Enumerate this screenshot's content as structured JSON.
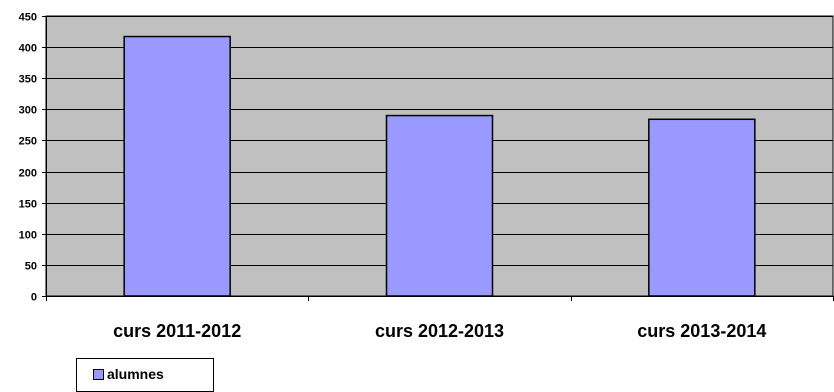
{
  "chart_data": {
    "type": "bar",
    "title": "",
    "xlabel": "",
    "ylabel": "",
    "categories": [
      "curs 2011-2012",
      "curs 2012-2013",
      "curs 2013-2014"
    ],
    "series": [
      {
        "name": "alumnes",
        "values": [
          417,
          290,
          284
        ]
      }
    ],
    "ylim": [
      0,
      450
    ],
    "yticks": [
      0,
      50,
      100,
      150,
      200,
      250,
      300,
      350,
      400,
      450
    ],
    "grid": true,
    "legend_position": "bottom-left"
  },
  "colors": {
    "plot_background": "#c0c0c0",
    "bar_fill": "#9999ff",
    "bar_stroke": "#000000",
    "gridline": "#000000"
  }
}
